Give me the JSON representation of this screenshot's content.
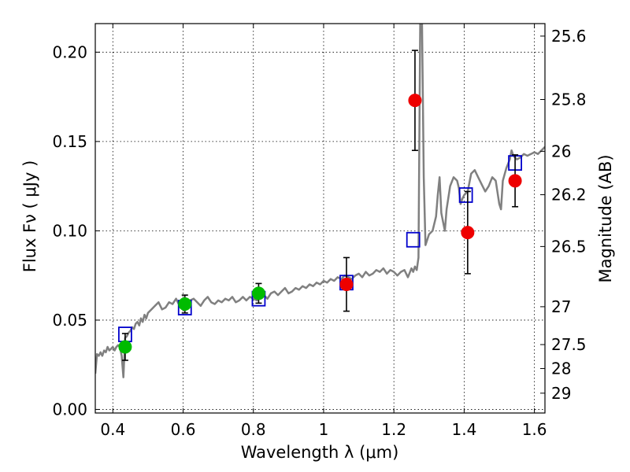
{
  "chart_data": {
    "type": "scatter",
    "xlabel": "Wavelength  λ (μm)",
    "ylabel": "Flux  Fν  ( μJy )",
    "ylabel_right": "Magnitude (AB)",
    "xlim": [
      0.35,
      1.63
    ],
    "ylim": [
      -0.002,
      0.216
    ],
    "grid": true,
    "x_ticks": [
      0.4,
      0.6,
      0.8,
      1.0,
      1.2,
      1.4,
      1.6
    ],
    "x_tick_labels": [
      "0.4",
      "0.6",
      "0.8",
      "1",
      "1.2",
      "1.4",
      "1.6"
    ],
    "y_ticks": [
      0.0,
      0.05,
      0.1,
      0.15,
      0.2
    ],
    "y_tick_labels": [
      "0.00",
      "0.05",
      "0.10",
      "0.15",
      "0.20"
    ],
    "right_ticks": [
      {
        "label": "25.6",
        "flux": 0.209
      },
      {
        "label": "25.8",
        "flux": 0.1735
      },
      {
        "label": "26",
        "flux": 0.1445
      },
      {
        "label": "26.2",
        "flux": 0.1202
      },
      {
        "label": "26.5",
        "flux": 0.0912
      },
      {
        "label": "27",
        "flux": 0.0575
      },
      {
        "label": "27.5",
        "flux": 0.0363
      },
      {
        "label": "28",
        "flux": 0.0229
      },
      {
        "label": "29",
        "flux": 0.0091
      }
    ],
    "colors": {
      "spectrum": "#808080",
      "model": "#0000cc",
      "green": "#00bb00",
      "red": "#ee0000",
      "errorbar": "#000000"
    },
    "series": [
      {
        "type": "line",
        "x": [
          0.35,
          0.355,
          0.36,
          0.365,
          0.37,
          0.375,
          0.38,
          0.385,
          0.39,
          0.395,
          0.4,
          0.405,
          0.41,
          0.415,
          0.42,
          0.425,
          0.43,
          0.435,
          0.44,
          0.445,
          0.45,
          0.455,
          0.46,
          0.465,
          0.47,
          0.475,
          0.48,
          0.485,
          0.49,
          0.495,
          0.5,
          0.51,
          0.52,
          0.53,
          0.54,
          0.55,
          0.56,
          0.57,
          0.58,
          0.59,
          0.6,
          0.61,
          0.62,
          0.63,
          0.64,
          0.65,
          0.66,
          0.67,
          0.68,
          0.69,
          0.7,
          0.71,
          0.72,
          0.73,
          0.74,
          0.75,
          0.76,
          0.77,
          0.78,
          0.79,
          0.8,
          0.81,
          0.82,
          0.83,
          0.84,
          0.85,
          0.86,
          0.87,
          0.88,
          0.89,
          0.9,
          0.91,
          0.92,
          0.93,
          0.94,
          0.95,
          0.96,
          0.97,
          0.98,
          0.99,
          1.0,
          1.01,
          1.02,
          1.03,
          1.04,
          1.05,
          1.06,
          1.07,
          1.08,
          1.09,
          1.1,
          1.11,
          1.12,
          1.13,
          1.14,
          1.15,
          1.16,
          1.17,
          1.18,
          1.19,
          1.2,
          1.21,
          1.22,
          1.23,
          1.24,
          1.25,
          1.255,
          1.26,
          1.265,
          1.27,
          1.275,
          1.28,
          1.285,
          1.29,
          1.3,
          1.31,
          1.32,
          1.325,
          1.33,
          1.335,
          1.34,
          1.345,
          1.35,
          1.36,
          1.37,
          1.38,
          1.385,
          1.39,
          1.395,
          1.4,
          1.41,
          1.42,
          1.43,
          1.44,
          1.45,
          1.46,
          1.47,
          1.48,
          1.49,
          1.5,
          1.505,
          1.51,
          1.52,
          1.53,
          1.535,
          1.54,
          1.55,
          1.56,
          1.57,
          1.58,
          1.59,
          1.6,
          1.61,
          1.62,
          1.63
        ],
        "y": [
          0.02,
          0.031,
          0.03,
          0.032,
          0.03,
          0.033,
          0.032,
          0.035,
          0.033,
          0.034,
          0.035,
          0.033,
          0.035,
          0.036,
          0.035,
          0.03,
          0.018,
          0.04,
          0.041,
          0.043,
          0.044,
          0.046,
          0.045,
          0.048,
          0.049,
          0.047,
          0.051,
          0.049,
          0.053,
          0.051,
          0.054,
          0.056,
          0.058,
          0.06,
          0.056,
          0.057,
          0.06,
          0.059,
          0.062,
          0.058,
          0.057,
          0.059,
          0.061,
          0.062,
          0.06,
          0.058,
          0.061,
          0.063,
          0.06,
          0.059,
          0.061,
          0.06,
          0.062,
          0.061,
          0.063,
          0.06,
          0.061,
          0.063,
          0.061,
          0.063,
          0.062,
          0.061,
          0.063,
          0.064,
          0.062,
          0.065,
          0.066,
          0.064,
          0.066,
          0.068,
          0.065,
          0.066,
          0.068,
          0.067,
          0.069,
          0.068,
          0.07,
          0.069,
          0.071,
          0.07,
          0.072,
          0.071,
          0.073,
          0.072,
          0.074,
          0.073,
          0.075,
          0.074,
          0.073,
          0.075,
          0.076,
          0.074,
          0.077,
          0.075,
          0.076,
          0.078,
          0.077,
          0.079,
          0.076,
          0.078,
          0.077,
          0.075,
          0.077,
          0.078,
          0.074,
          0.079,
          0.077,
          0.08,
          0.078,
          0.085,
          0.216,
          0.216,
          0.13,
          0.092,
          0.098,
          0.1,
          0.108,
          0.12,
          0.13,
          0.11,
          0.105,
          0.1,
          0.112,
          0.125,
          0.13,
          0.128,
          0.124,
          0.115,
          0.118,
          0.12,
          0.122,
          0.132,
          0.134,
          0.13,
          0.126,
          0.122,
          0.125,
          0.13,
          0.128,
          0.115,
          0.112,
          0.128,
          0.135,
          0.14,
          0.145,
          0.142,
          0.14,
          0.141,
          0.143,
          0.142,
          0.143,
          0.144,
          0.143,
          0.145,
          0.147
        ]
      },
      {
        "type": "scatter",
        "marker": "open-square",
        "x": [
          0.435,
          0.605,
          0.815,
          1.065,
          1.255,
          1.405,
          1.545
        ],
        "y": [
          0.042,
          0.057,
          0.062,
          0.071,
          0.095,
          0.12,
          0.138
        ]
      },
      {
        "type": "scatter",
        "marker": "filled-circle",
        "color_key": "green",
        "x": [
          0.435,
          0.605,
          0.815
        ],
        "y": [
          0.035,
          0.059,
          0.065
        ],
        "err": [
          0.0075,
          0.005,
          0.0055
        ]
      },
      {
        "type": "scatter",
        "marker": "filled-circle",
        "color_key": "red",
        "x": [
          1.065,
          1.26,
          1.41,
          1.545
        ],
        "y": [
          0.07,
          0.173,
          0.099,
          0.128
        ],
        "err": [
          0.015,
          0.028,
          0.023,
          0.0145
        ]
      }
    ]
  }
}
